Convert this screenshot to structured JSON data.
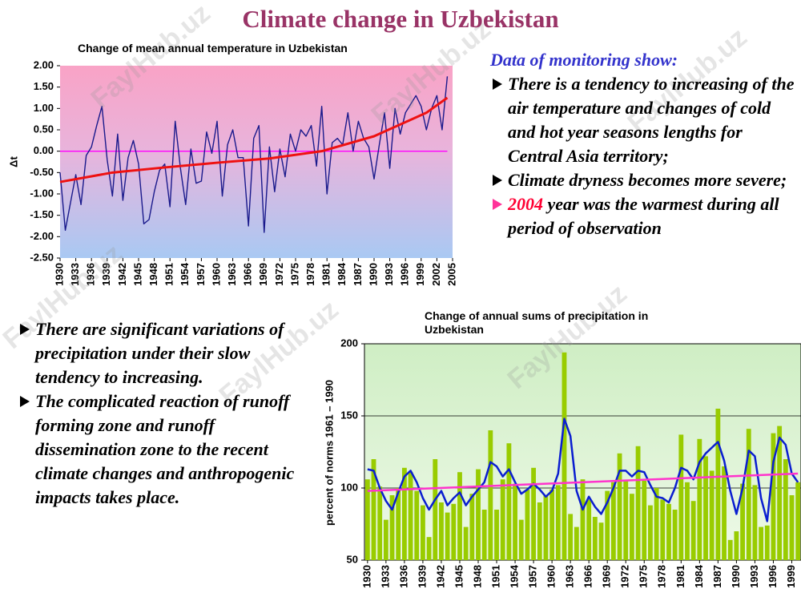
{
  "title": "Climate change in Uzbekistan",
  "watermark": "FaylHub.uz",
  "monitoring": {
    "heading": "Data of monitoring show:",
    "bullets": [
      "There is a tendency to increasing of the air temperature and changes of cold and hot year seasons lengths for Central Asia territory;",
      "Climate dryness becomes more severe;"
    ],
    "highlight_bullet": {
      "highlight": "2004",
      "text": "year was the warmest during all period of observation"
    }
  },
  "notes": [
    "There are significant variations of precipitation under their slow tendency to increasing.",
    "The complicated reaction of runoff forming zone and runoff dissemination zone to the recent climate changes and anthropogenic impacts takes place."
  ],
  "chart_data": [
    {
      "type": "line",
      "title": "Change of mean annual temperature in Uzbekistan",
      "y_label": "Δt",
      "x": [
        1930,
        1931,
        1932,
        1933,
        1934,
        1935,
        1936,
        1937,
        1938,
        1939,
        1940,
        1941,
        1942,
        1943,
        1944,
        1945,
        1946,
        1947,
        1948,
        1949,
        1950,
        1951,
        1952,
        1953,
        1954,
        1955,
        1956,
        1957,
        1958,
        1959,
        1960,
        1961,
        1962,
        1963,
        1964,
        1965,
        1966,
        1967,
        1968,
        1969,
        1970,
        1971,
        1972,
        1973,
        1974,
        1975,
        1976,
        1977,
        1978,
        1979,
        1980,
        1981,
        1982,
        1983,
        1984,
        1985,
        1986,
        1987,
        1988,
        1989,
        1990,
        1991,
        1992,
        1993,
        1994,
        1995,
        1996,
        1997,
        1998,
        1999,
        2000,
        2001,
        2002,
        2003,
        2004
      ],
      "xlim": [
        1930,
        2005
      ],
      "xticks": [
        1930,
        1933,
        1936,
        1939,
        1942,
        1945,
        1948,
        1951,
        1954,
        1957,
        1960,
        1963,
        1966,
        1969,
        1972,
        1975,
        1978,
        1981,
        1984,
        1987,
        1990,
        1993,
        1996,
        1999,
        2002,
        2005
      ],
      "ylim": [
        -2.5,
        2
      ],
      "yticks": [
        {
          "value": 2,
          "label": "2.00"
        },
        {
          "value": 1.5,
          "label": "1.50"
        },
        {
          "value": 1,
          "label": "1.00"
        },
        {
          "value": 0.5,
          "label": "0.50"
        },
        {
          "value": 0,
          "label": "0.00"
        },
        {
          "value": -0.5,
          "label": "-0.50"
        },
        {
          "value": -1,
          "label": "-1.00"
        },
        {
          "value": -1.5,
          "label": "-1.50"
        },
        {
          "value": -2,
          "label": "-2.00"
        },
        {
          "value": -2.5,
          "label": "-2.50"
        }
      ],
      "grid": false,
      "series": [
        {
          "color": "#ff00ff",
          "x": [
            1930,
            2004
          ],
          "values": [
            0,
            0
          ]
        },
        {
          "color": "#1a1a8c",
          "values": [
            -0.5,
            -1.85,
            -1.2,
            -0.55,
            -1.25,
            -0.1,
            0.1,
            0.6,
            1.05,
            -0.2,
            -1.05,
            0.4,
            -1.15,
            -0.15,
            0.25,
            -0.3,
            -1.7,
            -1.6,
            -0.95,
            -0.45,
            -0.3,
            -1.3,
            0.7,
            -0.4,
            -1.25,
            0.05,
            -0.75,
            -0.7,
            0.45,
            -0.05,
            0.7,
            -1.05,
            0.15,
            0.5,
            -0.15,
            -0.15,
            -1.75,
            0.3,
            0.6,
            -1.9,
            0.1,
            -0.95,
            0.05,
            -0.6,
            0.4,
            0.0,
            0.5,
            0.35,
            0.6,
            -0.35,
            1.05,
            -1.0,
            0.2,
            0.3,
            0.15,
            0.9,
            0.0,
            0.7,
            0.3,
            0.1,
            -0.65,
            0.15,
            0.9,
            -0.4,
            1.0,
            0.4,
            0.9,
            1.1,
            1.3,
            1.05,
            0.5,
            1.0,
            1.3,
            0.5,
            1.75
          ]
        },
        {
          "color": "#ee1111",
          "width": 3,
          "x": [
            1930,
            1940,
            1950,
            1960,
            1970,
            1980,
            1990,
            2000,
            2004
          ],
          "values": [
            -0.72,
            -0.5,
            -0.38,
            -0.27,
            -0.17,
            0.0,
            0.35,
            0.9,
            1.25
          ]
        }
      ]
    },
    {
      "type": "bar",
      "title": "Change of annual sums of precipitation in Uzbekistan",
      "y_label": "percent of norms 1961 – 1990",
      "x": [
        1930,
        1931,
        1932,
        1933,
        1934,
        1935,
        1936,
        1937,
        1938,
        1939,
        1940,
        1941,
        1942,
        1943,
        1944,
        1945,
        1946,
        1947,
        1948,
        1949,
        1950,
        1951,
        1952,
        1953,
        1954,
        1955,
        1956,
        1957,
        1958,
        1959,
        1960,
        1961,
        1962,
        1963,
        1964,
        1965,
        1966,
        1967,
        1968,
        1969,
        1970,
        1971,
        1972,
        1973,
        1974,
        1975,
        1976,
        1977,
        1978,
        1979,
        1980,
        1981,
        1982,
        1983,
        1984,
        1985,
        1986,
        1987,
        1988,
        1989,
        1990,
        1991,
        1992,
        1993,
        1994,
        1995,
        1996,
        1997,
        1998,
        1999,
        2000
      ],
      "xlim": [
        1929.5,
        2000.5
      ],
      "xticks": [
        1930,
        1933,
        1936,
        1939,
        1942,
        1945,
        1948,
        1951,
        1954,
        1957,
        1960,
        1963,
        1966,
        1969,
        1972,
        1975,
        1978,
        1981,
        1984,
        1987,
        1990,
        1993,
        1996,
        1999
      ],
      "ylim": [
        50,
        200
      ],
      "yticks": [
        50,
        100,
        150,
        200
      ],
      "grid": true,
      "series": [
        {
          "color": "#99cc00",
          "values": [
            106,
            120,
            101,
            78,
            95,
            100,
            114,
            111,
            98,
            88,
            66,
            120,
            90,
            83,
            89,
            111,
            73,
            96,
            113,
            85,
            140,
            85,
            106,
            131,
            103,
            78,
            99,
            114,
            90,
            95,
            99,
            102,
            194,
            82,
            73,
            106,
            92,
            80,
            76,
            98,
            104,
            124,
            105,
            96,
            129,
            105,
            88,
            100,
            92,
            89,
            85,
            137,
            104,
            91,
            134,
            122,
            112,
            155,
            115,
            64,
            70,
            103,
            141,
            102,
            73,
            74,
            138,
            143,
            120,
            95,
            104
          ]
        },
        {
          "type": "line",
          "color": "#0a1ed0",
          "width": 2.5,
          "values": [
            113,
            112,
            100,
            91,
            85,
            97,
            108,
            112,
            104,
            93,
            85,
            92,
            98,
            88,
            93,
            97,
            88,
            94,
            99,
            104,
            118,
            115,
            108,
            113,
            104,
            96,
            99,
            103,
            99,
            94,
            98,
            110,
            148,
            136,
            98,
            85,
            94,
            87,
            82,
            90,
            100,
            112,
            112,
            108,
            112,
            111,
            102,
            94,
            93,
            90,
            100,
            114,
            112,
            106,
            118,
            124,
            128,
            132,
            119,
            98,
            82,
            100,
            126,
            122,
            93,
            77,
            118,
            135,
            130,
            110,
            104
          ]
        },
        {
          "type": "line",
          "color": "#ff33cc",
          "width": 2.5,
          "x": [
            1930,
            2000
          ],
          "values": [
            98,
            110
          ]
        }
      ]
    }
  ]
}
